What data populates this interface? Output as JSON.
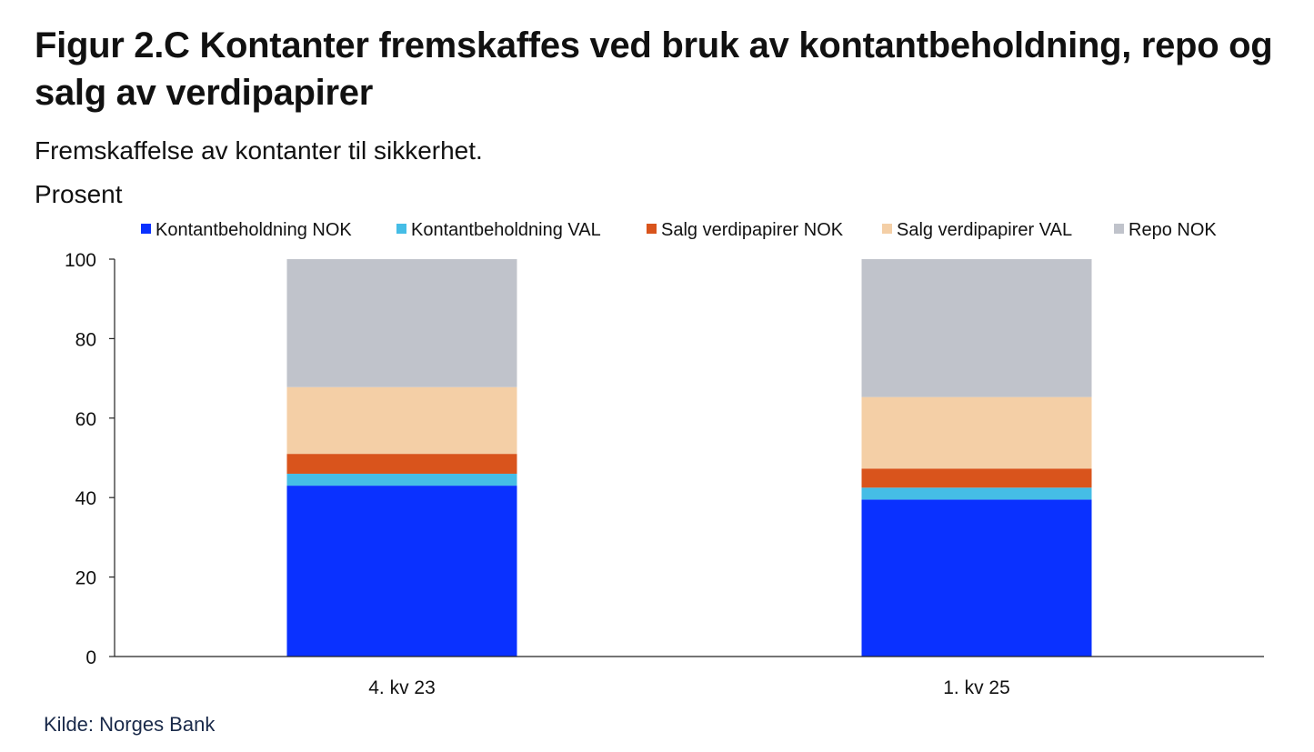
{
  "header": {
    "title": "Figur 2.C Kontanter fremskaffes ved bruk av kontantbeholdning, repo og salg av verdipapirer",
    "subtitle": "Fremskaffelse av kontanter til sikkerhet.",
    "unit": "Prosent"
  },
  "footer": {
    "source": "Kilde: Norges Bank"
  },
  "chart_data": {
    "type": "bar",
    "stacked": true,
    "title": "Figur 2.C Kontanter fremskaffes ved bruk av kontantbeholdning, repo og salg av verdipapirer",
    "subtitle": "Fremskaffelse av kontanter til sikkerhet.",
    "ylabel": "Prosent",
    "xlabel": "",
    "ylim": [
      0,
      100
    ],
    "yticks": [
      0,
      20,
      40,
      60,
      80,
      100
    ],
    "categories": [
      "4. kv 23",
      "1. kv 25"
    ],
    "legend_position": "top",
    "series": [
      {
        "name": "Kontantbeholdning NOK",
        "color": "#0a31ff",
        "values": [
          43,
          39.5
        ]
      },
      {
        "name": "Kontantbeholdning VAL",
        "color": "#45bde6",
        "values": [
          3,
          3
        ]
      },
      {
        "name": "Salg verdipapirer NOK",
        "color": "#d9541c",
        "values": [
          5,
          4.8
        ]
      },
      {
        "name": "Salg verdipapirer VAL",
        "color": "#f4cfa6",
        "values": [
          16.8,
          18
        ]
      },
      {
        "name": "Repo NOK",
        "color": "#c0c3cb",
        "values": [
          32.2,
          34.7
        ]
      }
    ]
  }
}
